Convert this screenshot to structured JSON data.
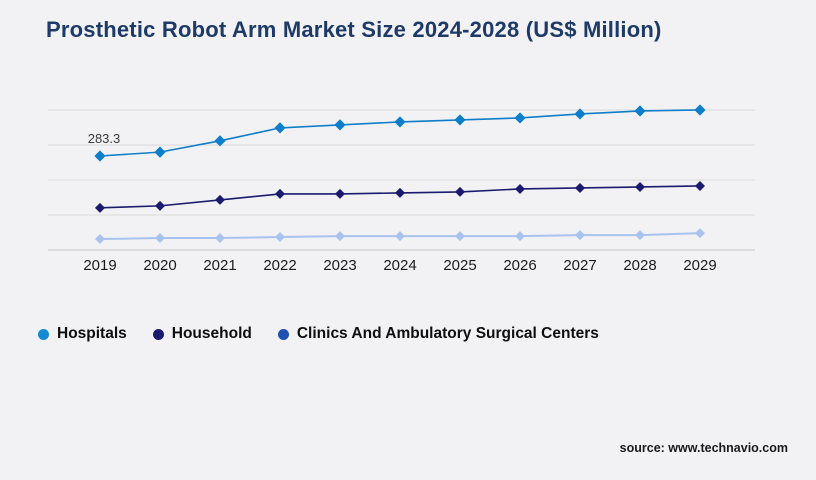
{
  "page": {
    "background_color": "#f2f2f4"
  },
  "header": {
    "title": "Prosthetic Robot Arm Market Size 2024-2028 (US$ Million)",
    "title_color": "#1e3a66"
  },
  "chart_data": {
    "type": "line",
    "title": "Prosthetic Robot Arm Market Size 2024-2028 (US$ Million)",
    "x": [
      "2019",
      "2020",
      "2021",
      "2022",
      "2023",
      "2024",
      "2025",
      "2026",
      "2027",
      "2028",
      "2029"
    ],
    "series": [
      {
        "name": "Hospitals",
        "color": "#0d7ec9",
        "marker": "diamond",
        "values": [
          283.3,
          295,
          329,
          368,
          377,
          386,
          392,
          398,
          410,
          419,
          422
        ]
      },
      {
        "name": "Household",
        "color": "#1c1a6e",
        "marker": "diamond",
        "values": [
          127,
          133,
          151,
          169,
          169,
          172,
          175,
          184,
          187,
          190,
          193
        ]
      },
      {
        "name": "Clinics And Ambulatory Surgical Centers",
        "color": "#a9c3ef",
        "marker": "diamond",
        "values": [
          33,
          36,
          36,
          39,
          42,
          42,
          42,
          42,
          45,
          45,
          51
        ]
      }
    ],
    "data_labels": [
      {
        "series": "Hospitals",
        "x": "2019",
        "text": "283.3"
      }
    ],
    "xlabel": "",
    "ylabel": "",
    "ylim": [
      0,
      470
    ],
    "grid": "horizontal",
    "gridline_color": "#d9d9dc",
    "axis_line_color": "#c6c6ca",
    "tick_label_color": "#1b1b1b",
    "data_label_color": "#3c3c3c",
    "legend_position": "bottom"
  },
  "legend": {
    "items": [
      {
        "label": "Hospitals",
        "dot_color": "#128ad4"
      },
      {
        "label": "Household",
        "dot_color": "#1c1a6e"
      },
      {
        "label": "Clinics And Ambulatory Surgical Centers",
        "dot_color": "#2150b4"
      }
    ]
  },
  "footer": {
    "source_text": "source: www.technavio.com"
  }
}
